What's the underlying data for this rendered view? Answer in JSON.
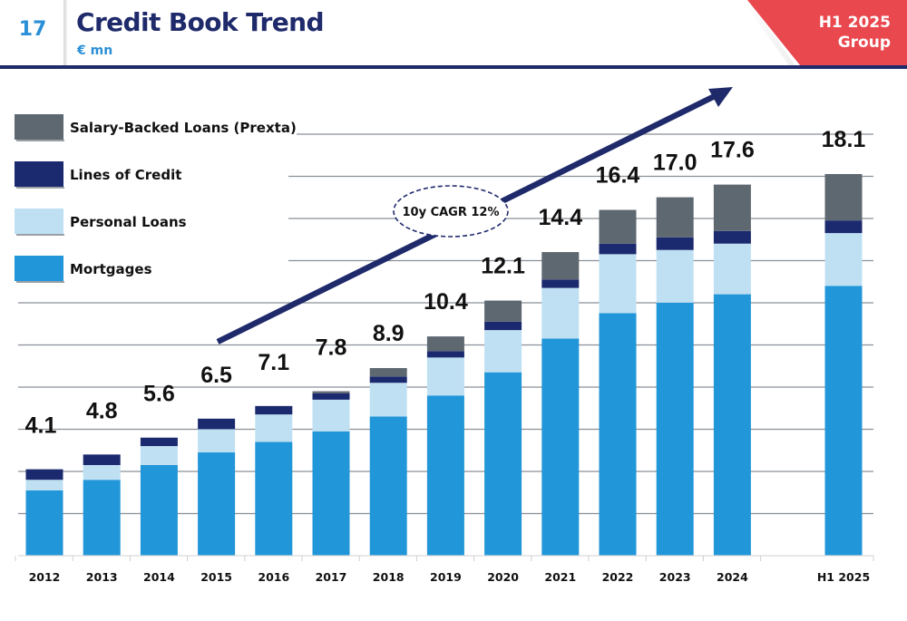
{
  "header": {
    "page_number": "17",
    "title": "Credit Book Trend",
    "subtitle": "€ mn",
    "period_line1": "H1 2025",
    "period_line2": "Group"
  },
  "colors": {
    "title": "#1f2a6b",
    "accent_blue": "#2a8fd6",
    "corner_red": "#e9484f",
    "mortgages": "#2196d8",
    "personal_loans": "#bfe0f3",
    "lines_of_credit": "#1b2a6e",
    "salary_backed": "#5e6871",
    "arrow": "#1f2a6b",
    "grid": "#8a9098"
  },
  "chart_data": {
    "type": "bar",
    "stacked": true,
    "title": "Credit Book Trend",
    "subtitle": "€ mn",
    "xlabel": "",
    "ylabel": "",
    "ylim": [
      0,
      20
    ],
    "grid": true,
    "legend_position": "top-left",
    "categories": [
      "2012",
      "2013",
      "2014",
      "2015",
      "2016",
      "2017",
      "2018",
      "2019",
      "2020",
      "2021",
      "2022",
      "2023",
      "2024",
      "H1 2025"
    ],
    "category_gap_after": "2024",
    "totals": [
      "4.1",
      "4.8",
      "5.6",
      "6.5",
      "7.1",
      "7.8",
      "8.9",
      "10.4",
      "12.1",
      "14.4",
      "16.4",
      "17.0",
      "17.6",
      "18.1"
    ],
    "series": [
      {
        "name": "Mortgages",
        "color_key": "mortgages",
        "values": [
          3.1,
          3.6,
          4.3,
          4.9,
          5.4,
          5.9,
          6.6,
          7.6,
          8.7,
          10.3,
          11.5,
          12.0,
          12.4,
          12.8
        ]
      },
      {
        "name": "Personal Loans",
        "color_key": "personal_loans",
        "values": [
          0.5,
          0.7,
          0.9,
          1.1,
          1.3,
          1.5,
          1.6,
          1.8,
          2.0,
          2.4,
          2.8,
          2.5,
          2.4,
          2.5
        ]
      },
      {
        "name": "Lines of Credit",
        "color_key": "lines_of_credit",
        "values": [
          0.5,
          0.5,
          0.4,
          0.5,
          0.4,
          0.3,
          0.3,
          0.3,
          0.4,
          0.4,
          0.5,
          0.6,
          0.6,
          0.6
        ]
      },
      {
        "name": "Salary-Backed Loans (Prexta)",
        "color_key": "salary_backed",
        "values": [
          0.0,
          0.0,
          0.0,
          0.0,
          0.0,
          0.1,
          0.4,
          0.7,
          1.0,
          1.3,
          1.6,
          1.9,
          2.2,
          2.2
        ]
      }
    ],
    "legend_order": [
      "Salary-Backed Loans (Prexta)",
      "Lines of Credit",
      "Personal Loans",
      "Mortgages"
    ],
    "annotation": {
      "text": "10y CAGR 12%",
      "type": "trend-arrow"
    }
  }
}
